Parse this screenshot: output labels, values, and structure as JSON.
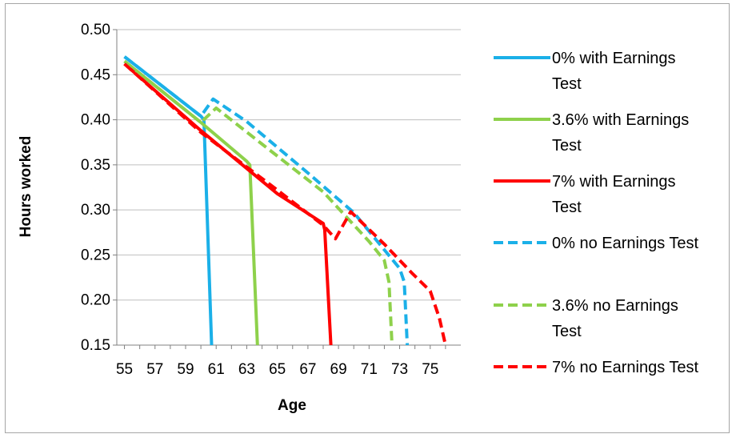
{
  "chart_data": {
    "type": "line",
    "title": "",
    "xlabel": "Age",
    "ylabel": "Hours worked",
    "xlim": [
      54.5,
      77
    ],
    "ylim": [
      0.15,
      0.5
    ],
    "x_ticks": [
      55,
      57,
      59,
      61,
      63,
      65,
      67,
      69,
      71,
      73,
      75
    ],
    "y_ticks": [
      "0.15",
      "0.20",
      "0.25",
      "0.30",
      "0.35",
      "0.40",
      "0.45",
      "0.50"
    ],
    "grid": "horizontal",
    "legend_position": "right",
    "series": [
      {
        "name": "0% with Earnings Test",
        "color": "#1bb0e8",
        "dash": "solid",
        "points": [
          [
            55,
            0.47
          ],
          [
            60,
            0.404
          ],
          [
            60.2,
            0.4
          ],
          [
            60.7,
            0.15
          ]
        ]
      },
      {
        "name": "3.6% with Earnings Test",
        "color": "#8ed14b",
        "dash": "solid",
        "points": [
          [
            55,
            0.465
          ],
          [
            60,
            0.397
          ],
          [
            63,
            0.354
          ],
          [
            63.2,
            0.35
          ],
          [
            63.7,
            0.15
          ]
        ]
      },
      {
        "name": "7% with Earnings Test",
        "color": "#ff0000",
        "dash": "solid",
        "points": [
          [
            55,
            0.462
          ],
          [
            60,
            0.388
          ],
          [
            65,
            0.318
          ],
          [
            68,
            0.285
          ],
          [
            68.1,
            0.278
          ],
          [
            68.5,
            0.15
          ]
        ]
      },
      {
        "name": "0% no Earnings Test",
        "color": "#1bb0e8",
        "dash": "dashed",
        "points": [
          [
            55,
            0.47
          ],
          [
            60,
            0.404
          ],
          [
            60.8,
            0.423
          ],
          [
            63,
            0.398
          ],
          [
            67,
            0.341
          ],
          [
            70,
            0.297
          ],
          [
            73,
            0.235
          ],
          [
            73.3,
            0.22
          ],
          [
            73.5,
            0.15
          ]
        ]
      },
      {
        "name": "3.6% no Earnings Test",
        "color": "#8ed14b",
        "dash": "dashed",
        "points": [
          [
            55,
            0.465
          ],
          [
            60,
            0.397
          ],
          [
            61,
            0.413
          ],
          [
            64,
            0.373
          ],
          [
            68,
            0.32
          ],
          [
            71,
            0.265
          ],
          [
            72,
            0.244
          ],
          [
            72.3,
            0.22
          ],
          [
            72.5,
            0.15
          ]
        ]
      },
      {
        "name": "7% no Earnings Test",
        "color": "#ff0000",
        "dash": "dashed",
        "points": [
          [
            55,
            0.462
          ],
          [
            60,
            0.386
          ],
          [
            65,
            0.322
          ],
          [
            68,
            0.283
          ],
          [
            68.8,
            0.268
          ],
          [
            69.2,
            0.28
          ],
          [
            69.8,
            0.298
          ],
          [
            72,
            0.262
          ],
          [
            73.8,
            0.23
          ],
          [
            75,
            0.21
          ],
          [
            75.6,
            0.18
          ],
          [
            76,
            0.15
          ]
        ]
      }
    ]
  }
}
